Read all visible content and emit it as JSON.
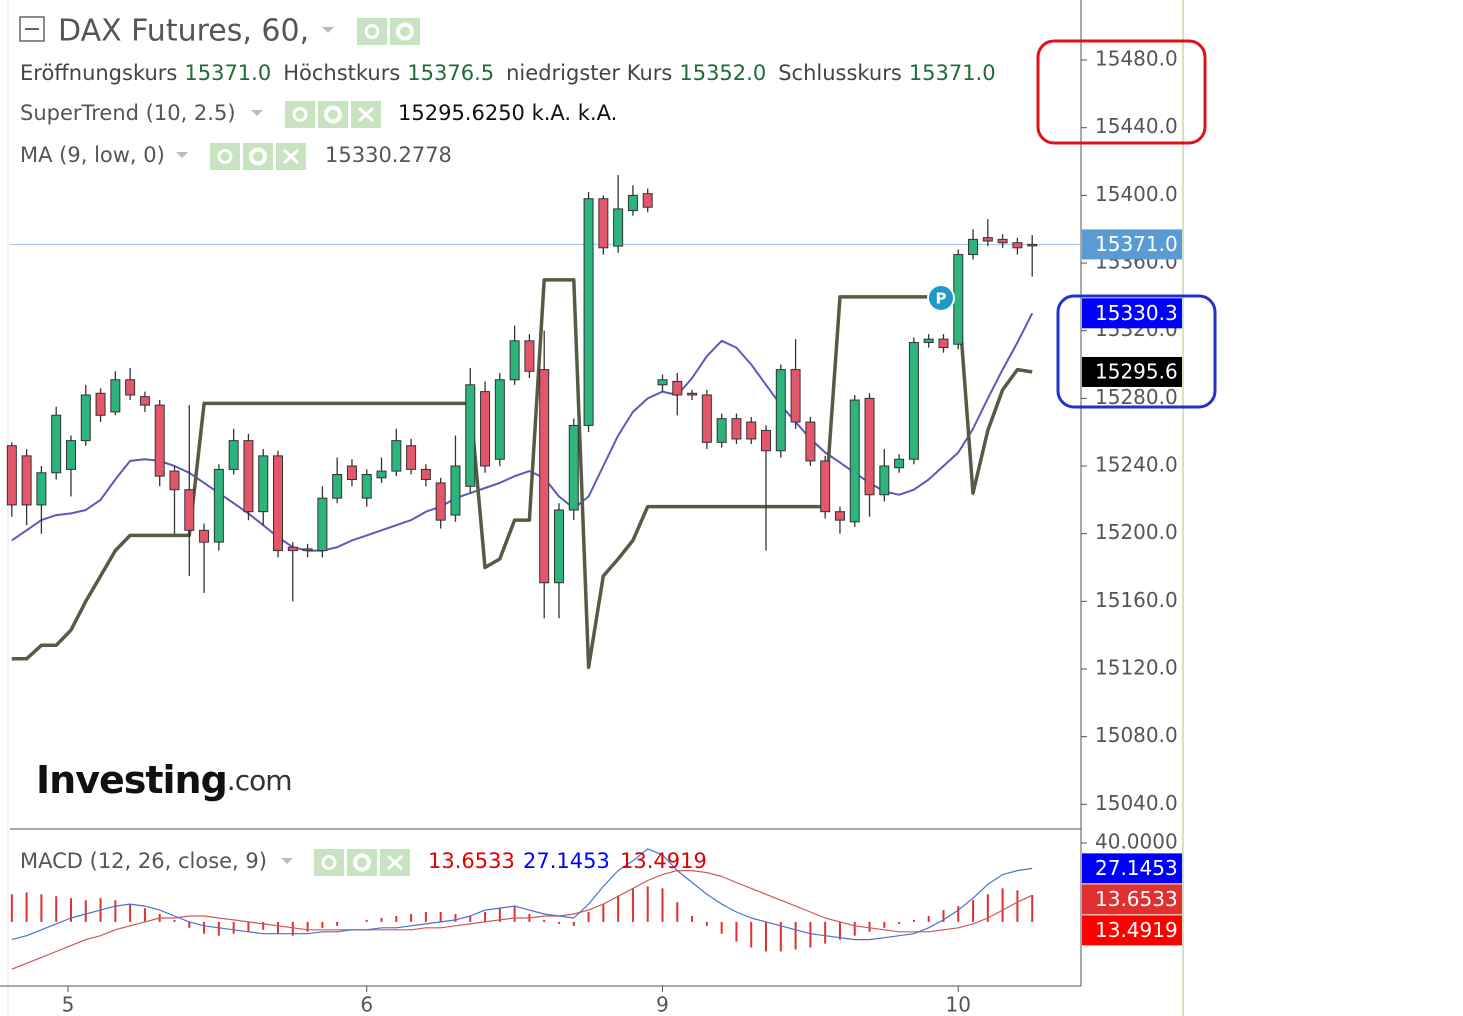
{
  "chart_data": [
    {
      "type": "candlestick",
      "title": "DAX Futures, 60,",
      "ohlc_legend": [
        {
          "name": "Eröffnungskurs",
          "value": "15371.0"
        },
        {
          "name": "Höchstkurs",
          "value": "15376.5"
        },
        {
          "name": "niedrigster Kurs",
          "value": "15352.0"
        },
        {
          "name": "Schlusskurs",
          "value": "15371.0"
        }
      ],
      "open": [
        15252,
        15246,
        15217,
        15236,
        15238,
        15255,
        15283,
        15272,
        15291,
        15281,
        15276,
        15237,
        15226,
        15202,
        15195,
        15238,
        15255,
        15213,
        15246,
        15192,
        15191,
        15190,
        15221,
        15240,
        15221,
        15233,
        15237,
        15252,
        15238,
        15230,
        15211,
        15228,
        15284,
        15244,
        15291,
        15314,
        15297,
        15171,
        15214,
        15264,
        15398,
        15370,
        15391,
        15401,
        15288,
        15290,
        15283,
        15282,
        15254,
        15268,
        15266,
        15261,
        15249,
        15297,
        15266,
        15243,
        15213,
        15207,
        15280,
        15223,
        15239,
        15244,
        15313,
        15315,
        15312,
        15365,
        15375,
        15374,
        15372,
        15371
      ],
      "high": [
        15254,
        15250,
        15240,
        15275,
        15258,
        15288,
        15286,
        15296,
        15298,
        15284,
        15279,
        15240,
        15276,
        15206,
        15241,
        15262,
        15259,
        15250,
        15249,
        15195,
        15194,
        15228,
        15245,
        15244,
        15238,
        15245,
        15262,
        15256,
        15241,
        15233,
        15258,
        15298,
        15290,
        15295,
        15323,
        15318,
        15320,
        15218,
        15268,
        15402,
        15400,
        15412,
        15406,
        15404,
        15294,
        15295,
        15285,
        15285,
        15271,
        15271,
        15269,
        15264,
        15300,
        15315,
        15269,
        15246,
        15216,
        15282,
        15283,
        15250,
        15247,
        15316,
        15318,
        15318,
        15368,
        15380,
        15386,
        15377,
        15375,
        15376.5
      ],
      "low": [
        15210,
        15205,
        15200,
        15232,
        15222,
        15252,
        15266,
        15270,
        15279,
        15272,
        15228,
        15200,
        15175,
        15165,
        15190,
        15235,
        15208,
        15205,
        15186,
        15160,
        15186,
        15186,
        15218,
        15228,
        15216,
        15230,
        15234,
        15235,
        15228,
        15203,
        15207,
        15224,
        15236,
        15240,
        15288,
        15292,
        15150,
        15150,
        15208,
        15260,
        15365,
        15366,
        15388,
        15390,
        15284,
        15270,
        15279,
        15250,
        15251,
        15253,
        15253,
        15190,
        15245,
        15262,
        15240,
        15209,
        15200,
        15204,
        15210,
        15219,
        15236,
        15241,
        15310,
        15307,
        15309,
        15362,
        15370,
        15369,
        15365,
        15352
      ],
      "close": [
        15217,
        15217,
        15236,
        15270,
        15255,
        15282,
        15270,
        15291,
        15282,
        15276,
        15234,
        15226,
        15202,
        15195,
        15238,
        15255,
        15213,
        15246,
        15190,
        15190,
        15190,
        15221,
        15235,
        15232,
        15235,
        15237,
        15255,
        15238,
        15232,
        15208,
        15240,
        15288,
        15240,
        15291,
        15314,
        15296,
        15171,
        15214,
        15264,
        15398,
        15369,
        15392,
        15400,
        15393,
        15291,
        15282,
        15282,
        15254,
        15268,
        15256,
        15256,
        15249,
        15297,
        15266,
        15243,
        15213,
        15208,
        15279,
        15223,
        15240,
        15244,
        15313,
        15315,
        15310,
        15365,
        15374,
        15373,
        15372,
        15369,
        15371
      ],
      "up_color": "#2cb47c",
      "down_color": "#e2576a",
      "series": [
        {
          "name": "SuperTrend (10, 2.5)",
          "readout": "15295.6250 k.A. k.A.",
          "color": "#565c43",
          "values": [
            15126,
            15126,
            15134,
            15134,
            15143,
            15160,
            15175,
            15190,
            15199,
            15199,
            15199,
            15199,
            15199,
            15277,
            15277,
            15277,
            15277,
            15277,
            15277,
            15277,
            15277,
            15277,
            15277,
            15277,
            15277,
            15277,
            15277,
            15277,
            15277,
            15277,
            15277,
            15277,
            15180,
            15185,
            15208,
            15208,
            15350,
            15350,
            15350,
            15121,
            15175,
            15185,
            15196,
            15216,
            15216,
            15216,
            15216,
            15216,
            15216,
            15216,
            15216,
            15216,
            15216,
            15216,
            15216,
            15216,
            15340,
            15340,
            15340,
            15340,
            15340,
            15340,
            15340,
            15340,
            15340,
            15224,
            15261,
            15285,
            15297,
            15295.625
          ]
        },
        {
          "name": "MA (9, low, 0)",
          "color": "#5a5ab8",
          "readout_color": "#0000cc",
          "values": [
            15196,
            15202,
            15208,
            15211,
            15212,
            15214,
            15220,
            15232,
            15243,
            15244,
            15243,
            15240,
            15236,
            15230,
            15224,
            15218,
            15212,
            15205,
            15198,
            15192,
            15190,
            15190,
            15192,
            15196,
            15199,
            15202,
            15205,
            15208,
            15213,
            15216,
            15221,
            15224,
            15227,
            15230,
            15234,
            15237,
            15233,
            15222,
            15215,
            15222,
            15240,
            15258,
            15272,
            15280,
            15284,
            15282,
            15292,
            15305,
            15314,
            15310,
            15300,
            15288,
            15276,
            15266,
            15256,
            15248,
            15242,
            15236,
            15230,
            15225,
            15223,
            15226,
            15232,
            15240,
            15248,
            15262,
            15280,
            15297,
            15313,
            15330.2778
          ]
        }
      ],
      "badges": [
        {
          "value": 15371.0,
          "label": "15371.0",
          "color": "#5a9bd4"
        },
        {
          "value": 15330.3,
          "label": "15330.3",
          "color": "#0000ff"
        },
        {
          "value": 15295.6,
          "label": "15295.6",
          "color": "#000000"
        }
      ],
      "marker_label": "P",
      "watermark": {
        "brand": "Investing",
        "suffix": ".com"
      },
      "ylim": [
        15026,
        15515.5
      ],
      "yticks": [
        {
          "value": 15480,
          "label": "15480.0"
        },
        {
          "value": 15440,
          "label": "15440.0"
        },
        {
          "value": 15400,
          "label": "15400.0"
        },
        {
          "value": 15360,
          "label": "15360.0"
        },
        {
          "value": 15320,
          "label": "15320.0"
        },
        {
          "value": 15280,
          "label": "15280.0"
        },
        {
          "value": 15240,
          "label": "15240.0"
        },
        {
          "value": 15200,
          "label": "15200.0"
        },
        {
          "value": 15160,
          "label": "15160.0"
        },
        {
          "value": 15120,
          "label": "15120.0"
        },
        {
          "value": 15080,
          "label": "15080.0"
        },
        {
          "value": 15040,
          "label": "15040.0"
        }
      ],
      "xlim": [
        -0.8,
        72.3
      ],
      "xticks": [
        {
          "value": 3.8,
          "label": "5"
        },
        {
          "value": 24,
          "label": "6"
        },
        {
          "value": 44,
          "label": "9"
        },
        {
          "value": 64,
          "label": "10"
        }
      ]
    },
    {
      "type": "macd",
      "title": "MACD (12, 26, close, 9)",
      "series": [
        {
          "color": "#e03030",
          "values": [
            14,
            15,
            14,
            13,
            12,
            11,
            12,
            11,
            9,
            7,
            4,
            1,
            -3,
            -6,
            -7,
            -6,
            -5,
            -4,
            -6,
            -7,
            -5,
            -3,
            -2,
            0,
            1,
            2,
            3,
            4,
            5,
            5,
            4,
            3,
            5,
            7,
            8,
            4,
            1,
            -1,
            -2,
            5,
            9,
            13,
            17,
            18,
            17,
            10,
            3,
            -2,
            -6,
            -10,
            -13,
            -15,
            -15,
            -14,
            -13,
            -11,
            -9,
            -7,
            -5,
            -3,
            -1,
            1,
            3,
            6,
            8,
            11,
            14,
            17,
            16,
            13.6533
          ]
        },
        {
          "color": "#0000ff",
          "line_color": "#4a6fd0",
          "values": [
            -9,
            -7,
            -4,
            -1,
            2,
            4,
            6,
            8,
            9,
            8,
            6,
            3,
            0,
            -2,
            -3,
            -4,
            -5,
            -6,
            -6,
            -6,
            -6,
            -5,
            -5,
            -4,
            -4,
            -3,
            -3,
            -2,
            -1,
            0,
            1,
            3,
            6,
            7,
            8,
            6,
            4,
            3,
            2,
            9,
            18,
            26,
            31,
            37,
            34,
            26,
            20,
            14,
            9,
            5,
            2,
            0,
            -2,
            -4,
            -6,
            -7,
            -8,
            -9,
            -9,
            -8,
            -7,
            -6,
            -3,
            1,
            6,
            12,
            19,
            24,
            26,
            27.1453
          ]
        },
        {
          "color": "#ff0000",
          "line_color": "#d05858",
          "values": [
            -24,
            -21,
            -18,
            -15,
            -12,
            -9,
            -7,
            -4,
            -2,
            0,
            2,
            2,
            3,
            3,
            2,
            1,
            0,
            -1,
            -2,
            -3,
            -4,
            -4,
            -4,
            -4,
            -4,
            -4,
            -4,
            -4,
            -3,
            -3,
            -2,
            -1,
            0,
            1,
            2,
            2,
            3,
            3,
            4,
            6,
            9,
            13,
            17,
            21,
            24,
            26,
            26,
            25,
            23,
            20,
            17,
            14,
            11,
            8,
            5,
            2,
            0,
            -2,
            -3,
            -4,
            -5,
            -5,
            -5,
            -4,
            -3,
            -1,
            2,
            6,
            10,
            13.4919
          ]
        }
      ],
      "ylim": [
        -32,
        46.6
      ],
      "yticks": [
        {
          "value": 40,
          "label": "40.0000"
        }
      ]
    }
  ]
}
